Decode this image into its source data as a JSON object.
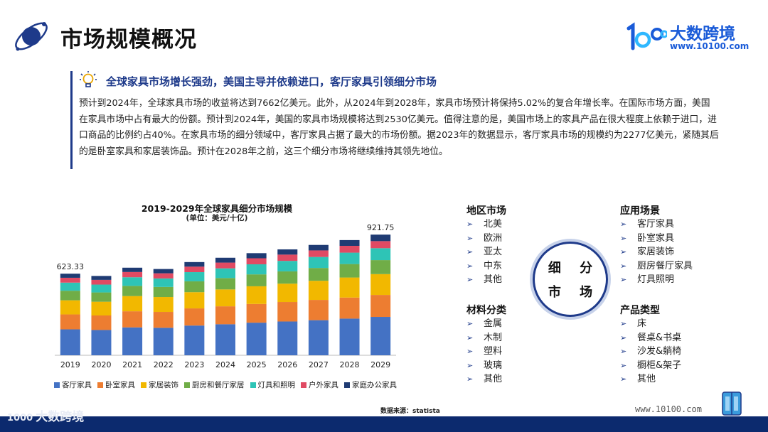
{
  "header": {
    "title": "市场规模概况",
    "brand_name": "大数跨境",
    "brand_mark": "1000",
    "brand_url": "www.10100.com"
  },
  "summary": {
    "headline": "全球家具市场增长强劲，美国主导并依赖进口，客厅家具引领细分市场",
    "body": "预计到2024年，全球家具市场的收益将达到7662亿美元。此外，从2024年到2028年，家具市场预计将保持5.02%的复合年增长率。在国际市场方面，美国在家具市场中占有最大的份额。预计到2024年，美国的家具市场规模将达到2530亿美元。值得注意的是，美国市场上的家具产品在很大程度上依赖于进口，进口商品的比例约占40%。在家具市场的细分领域中，客厅家具占据了最大的市场份额。据2023年的数据显示，客厅家具市场的规模约为2277亿美元，紧随其后的是卧室家具和家居装饰品。预计在2028年之前，这三个细分市场将继续维持其领先地位。"
  },
  "chart_data": {
    "type": "bar",
    "stacked": true,
    "title": "2019-2029年全球家具细分市场规模",
    "subtitle": "(单位：美元/十亿)",
    "categories": [
      "2019",
      "2020",
      "2021",
      "2022",
      "2023",
      "2024",
      "2025",
      "2026",
      "2027",
      "2028",
      "2029"
    ],
    "series": [
      {
        "name": "客厅家具",
        "color": "#4472c4",
        "values": [
          198,
          193,
          213,
          210,
          227,
          237,
          249,
          258,
          268,
          280,
          293
        ]
      },
      {
        "name": "卧室家具",
        "color": "#ed7d31",
        "values": [
          114,
          111,
          123,
          121,
          131,
          137,
          143,
          149,
          155,
          161,
          168
        ]
      },
      {
        "name": "家居装饰",
        "color": "#f2b800",
        "values": [
          108,
          105,
          116,
          114,
          124,
          129,
          135,
          140,
          146,
          153,
          159
        ]
      },
      {
        "name": "厨房和餐厅家居",
        "color": "#70ad47",
        "values": [
          73,
          71,
          78,
          77,
          83,
          87,
          91,
          94,
          98,
          103,
          107
        ]
      },
      {
        "name": "灯具和照明",
        "color": "#2ec4b6",
        "values": [
          62,
          60,
          66,
          65,
          70,
          74,
          77,
          80,
          84,
          87,
          91
        ]
      },
      {
        "name": "户外家具",
        "color": "#e04a63",
        "values": [
          37,
          36,
          40,
          39,
          42,
          44,
          46,
          48,
          50,
          52,
          54
        ]
      },
      {
        "name": "家庭办公家具",
        "color": "#1f3b73",
        "values": [
          31.33,
          30,
          33,
          33,
          35,
          37,
          39,
          40,
          42,
          44,
          49.75
        ]
      }
    ],
    "totals_labeled": {
      "2019": "623.33",
      "2029": "921.75"
    },
    "ylim": [
      0,
      950
    ],
    "xlabel": "",
    "ylabel": "",
    "legend_position": "bottom",
    "source": "数据来源：statista"
  },
  "segments": {
    "center_top": "细 分",
    "center_bottom": "市 场",
    "arrow": "➢",
    "groups": {
      "region": {
        "title": "地区市场",
        "items": [
          "北美",
          "欧洲",
          "亚太",
          "中东",
          "其他"
        ]
      },
      "material": {
        "title": "材料分类",
        "items": [
          "金属",
          "木制",
          "塑料",
          "玻璃",
          "其他"
        ]
      },
      "scene": {
        "title": "应用场景",
        "items": [
          "客厅家具",
          "卧室家具",
          "家居装饰",
          "厨房餐厅家具",
          "灯具照明"
        ]
      },
      "product": {
        "title": "产品类型",
        "items": [
          "床",
          "餐桌&书桌",
          "沙发&躺椅",
          "橱柜&架子",
          "其他"
        ]
      }
    }
  },
  "footer": {
    "logo_text": "大数跨境",
    "url": "www.10100.com"
  }
}
